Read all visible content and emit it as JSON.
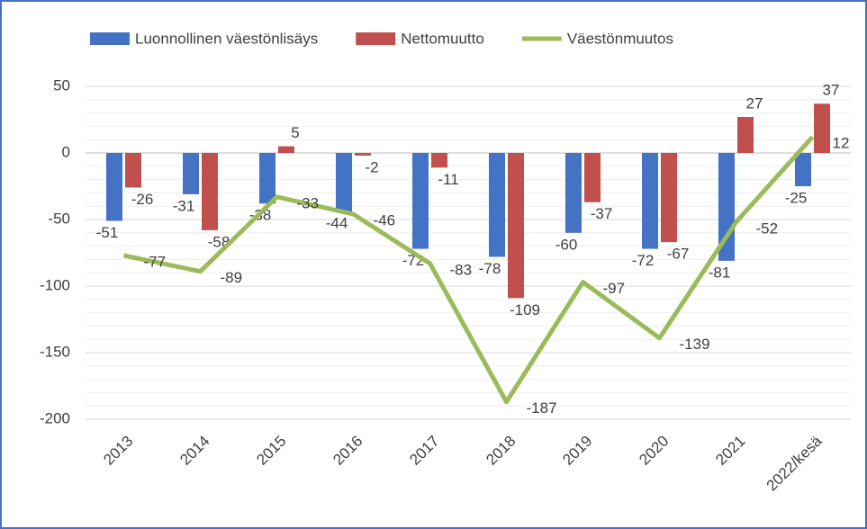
{
  "chart_data": {
    "type": "bar_line",
    "categories": [
      "2013",
      "2014",
      "2015",
      "2016",
      "2017",
      "2018",
      "2019",
      "2020",
      "2021",
      "2022/kesä"
    ],
    "series": [
      {
        "name": "Luonnollinen väestönlisäys",
        "color": "#4472c4",
        "kind": "bar",
        "values": [
          -51,
          -31,
          -38,
          -44,
          -72,
          -78,
          -60,
          -72,
          -81,
          -25
        ]
      },
      {
        "name": "Nettomuutto",
        "color": "#c0504d",
        "kind": "bar",
        "values": [
          -26,
          -58,
          5,
          -2,
          -11,
          -109,
          -37,
          -67,
          27,
          37
        ]
      },
      {
        "name": "Väestönmuutos",
        "color": "#9bbb59",
        "kind": "line",
        "values": [
          -77,
          -89,
          -33,
          -46,
          -83,
          -187,
          -97,
          -139,
          -52,
          12
        ]
      }
    ],
    "ylim": [
      -200,
      50
    ],
    "yticks": [
      -200,
      -150,
      -100,
      -50,
      0,
      50
    ],
    "grid": true,
    "legend": "top"
  }
}
